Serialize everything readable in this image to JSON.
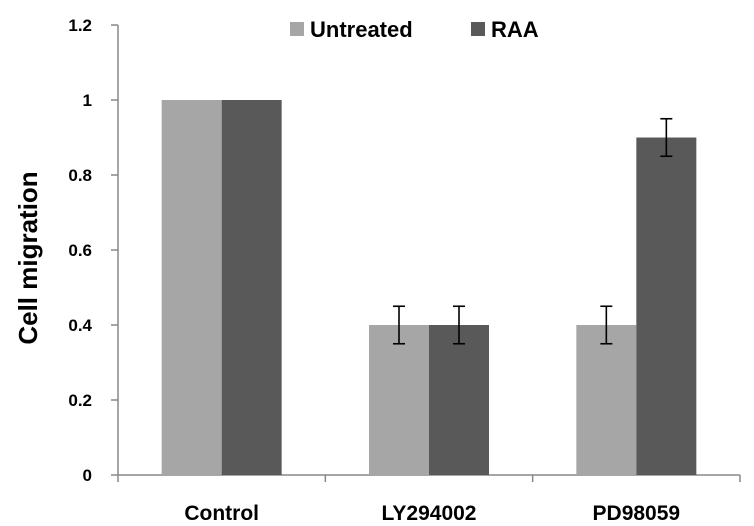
{
  "chart_data": {
    "type": "bar",
    "title": "",
    "xlabel": "",
    "ylabel": "Cell migration",
    "categories": [
      "Control",
      "LY294002",
      "PD98059"
    ],
    "series": [
      {
        "name": "Untreated",
        "color": "#a6a6a6",
        "values": [
          1.0,
          0.4,
          0.4
        ],
        "errors": [
          null,
          0.05,
          0.05
        ]
      },
      {
        "name": "RAA",
        "color": "#595959",
        "values": [
          1.0,
          0.4,
          0.9
        ],
        "errors": [
          null,
          0.05,
          0.05
        ]
      }
    ],
    "ylim": [
      0,
      1.2
    ],
    "yticks": [
      0,
      0.2,
      0.4,
      0.6,
      0.8,
      1,
      1.2
    ],
    "ytick_labels": [
      "0",
      "0.2",
      "0.4",
      "0.6",
      "0.8",
      "1",
      "1.2"
    ],
    "grid": false,
    "legend_position": "top-center"
  }
}
